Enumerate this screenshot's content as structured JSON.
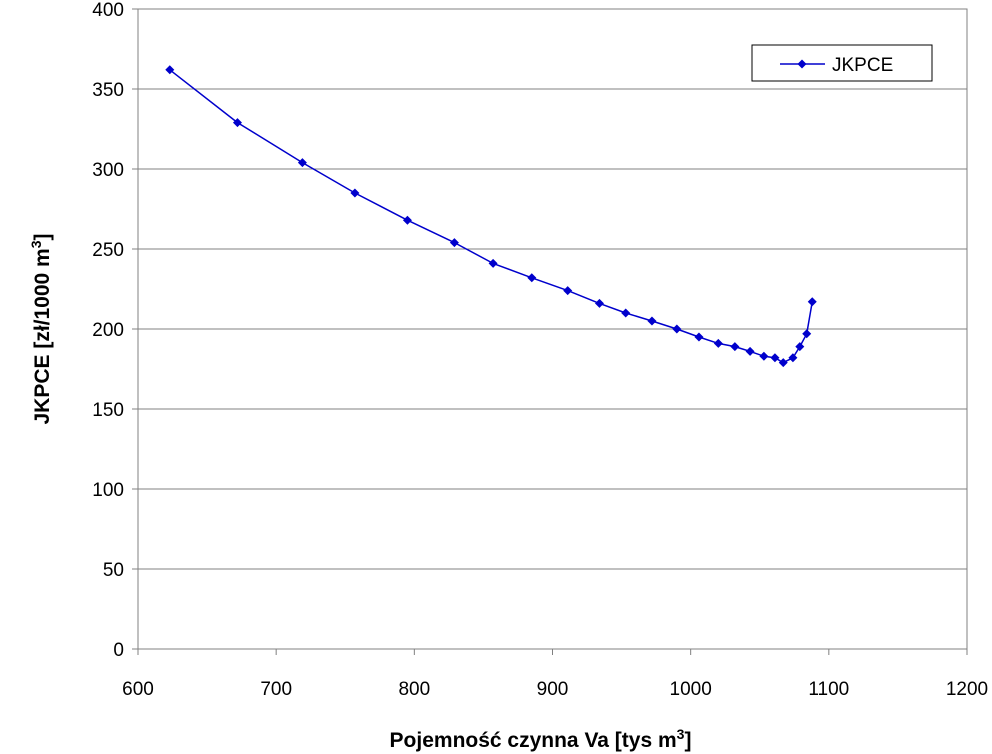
{
  "chart_data": {
    "type": "line",
    "xlabel": {
      "text": "Pojemność czynna Va  [tys m",
      "sup": "3",
      "tail": "]"
    },
    "ylabel": {
      "text": "JKPCE [zł/1000 m",
      "sup": "3",
      "tail": "]"
    },
    "xlim": [
      600,
      1200
    ],
    "ylim": [
      0,
      400
    ],
    "xticks": [
      "600",
      "700",
      "800",
      "900",
      "1000",
      "1100",
      "1200"
    ],
    "yticks": [
      "0",
      "50",
      "100",
      "150",
      "200",
      "250",
      "300",
      "350",
      "400"
    ],
    "grid": "horizontal",
    "legend_position": "top-right",
    "series": [
      {
        "name": "JKPCE",
        "color": "#0000CC",
        "marker": "diamond",
        "x": [
          623,
          672,
          719,
          757,
          795,
          829,
          857,
          885,
          911,
          934,
          953,
          972,
          990,
          1006,
          1020,
          1032,
          1043,
          1053,
          1061,
          1067,
          1074,
          1079,
          1084,
          1088
        ],
        "y": [
          362,
          329,
          304,
          285,
          268,
          254,
          241,
          232,
          224,
          216,
          210,
          205,
          200,
          195,
          191,
          189,
          186,
          183,
          182,
          179,
          182,
          189,
          197,
          217
        ]
      }
    ]
  }
}
